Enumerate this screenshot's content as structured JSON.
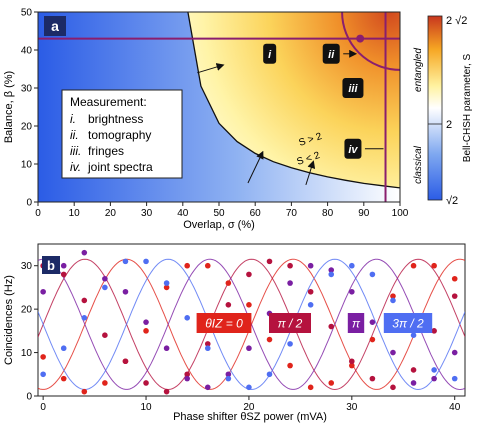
{
  "chart_data": [
    {
      "type": "heatmap",
      "panel_label": "a",
      "xlabel": "Overlap, σ (%)",
      "ylabel": "Balance, β (%)",
      "xlim": [
        0,
        100
      ],
      "ylim": [
        0,
        50
      ],
      "xticks": [
        0,
        10,
        20,
        30,
        40,
        50,
        60,
        70,
        80,
        90,
        100
      ],
      "yticks": [
        0,
        10,
        20,
        30,
        40,
        50
      ],
      "colorbar": {
        "label": "Bell-CHSH parameter, S",
        "min_label": "√2",
        "mid_label": "2",
        "max_label": "2 √2",
        "upper_region": "entangled",
        "lower_region": "classical",
        "colors": [
          "#2b5ce6",
          "#7fa8f0",
          "#ffffff",
          "#fff2a0",
          "#f6a623",
          "#c8361e"
        ]
      },
      "boundary_labels": {
        "above": "S > 2",
        "below": "S < 2"
      },
      "boundary_curve": [
        [
          41.4,
          50
        ],
        [
          45,
          30.5
        ],
        [
          50,
          20.7
        ],
        [
          55,
          15.9
        ],
        [
          60,
          12.8
        ],
        [
          65,
          10.6
        ],
        [
          70,
          9.0
        ],
        [
          75,
          7.7
        ],
        [
          80,
          6.6
        ],
        [
          85,
          5.7
        ],
        [
          90,
          4.9
        ],
        [
          95,
          4.3
        ],
        [
          100,
          3.7
        ]
      ],
      "measurement_lines": {
        "brightness_beta": 43,
        "joint_spectra_sigma": 96,
        "tomography_point": [
          89,
          43
        ],
        "fringes_arc_center": [
          100,
          50
        ]
      },
      "markers": [
        {
          "id": "i",
          "label": "i",
          "x": 64,
          "y": 39
        },
        {
          "id": "ii",
          "label": "ii",
          "x": 81,
          "y": 39
        },
        {
          "id": "iii",
          "label": "iii",
          "x": 87,
          "y": 30
        },
        {
          "id": "iv",
          "label": "iv",
          "x": 87,
          "y": 14
        }
      ],
      "legend": {
        "title": "Measurement:",
        "items": [
          {
            "num": "i.",
            "text": "brightness"
          },
          {
            "num": "ii.",
            "text": "tomography"
          },
          {
            "num": "iii.",
            "text": "fringes"
          },
          {
            "num": "iv.",
            "text": "joint spectra"
          }
        ]
      }
    },
    {
      "type": "scatter",
      "panel_label": "b",
      "xlabel": "Phase shifter θSZ power (mVA)",
      "ylabel": "Coincidences (Hz)",
      "xlim": [
        -0.5,
        41
      ],
      "ylim": [
        0,
        35
      ],
      "xticks": [
        0,
        10,
        20,
        30,
        40
      ],
      "yticks": [
        0,
        10,
        20,
        30
      ],
      "fringe_model": {
        "mean": 16.5,
        "amplitude": 15,
        "period": 16.2
      },
      "series": [
        {
          "name": "θIZ = 0",
          "label": "θIZ = 0",
          "color": "#e0241b",
          "phase": 3.14,
          "points": [
            [
              0,
              9
            ],
            [
              2,
              4
            ],
            [
              4,
              1
            ],
            [
              6,
              3
            ],
            [
              8,
              8
            ],
            [
              10,
              15
            ],
            [
              12,
              25
            ],
            [
              14,
              30
            ],
            [
              16,
              30
            ],
            [
              18,
              26
            ],
            [
              20,
              21
            ],
            [
              22,
              13
            ],
            [
              24,
              7
            ],
            [
              26,
              2
            ],
            [
              28,
              3
            ],
            [
              30,
              7
            ],
            [
              32,
              13
            ],
            [
              34,
              23
            ],
            [
              36,
              30
            ],
            [
              38,
              30
            ],
            [
              40,
              27
            ]
          ]
        },
        {
          "name": "π / 2",
          "label": "π / 2",
          "color": "#b5123e",
          "phase": 4.71,
          "points": [
            [
              0,
              30
            ],
            [
              2,
              28
            ],
            [
              4,
              22
            ],
            [
              6,
              14
            ],
            [
              8,
              8
            ],
            [
              10,
              3
            ],
            [
              12,
              1
            ],
            [
              14,
              5
            ],
            [
              16,
              12
            ],
            [
              18,
              21
            ],
            [
              20,
              28
            ],
            [
              22,
              31
            ],
            [
              24,
              30
            ],
            [
              26,
              24
            ],
            [
              28,
              16
            ],
            [
              30,
              8
            ],
            [
              32,
              4
            ],
            [
              34,
              2
            ],
            [
              36,
              6
            ],
            [
              38,
              15
            ],
            [
              40,
              23
            ]
          ]
        },
        {
          "name": "π",
          "label": "π",
          "color": "#7a1fa2",
          "phase": 0.0,
          "points": [
            [
              0,
              24
            ],
            [
              2,
              30
            ],
            [
              4,
              33
            ],
            [
              6,
              27
            ],
            [
              8,
              24
            ],
            [
              10,
              17
            ],
            [
              12,
              11
            ],
            [
              14,
              4
            ],
            [
              16,
              2
            ],
            [
              18,
              5
            ],
            [
              20,
              11
            ],
            [
              22,
              19
            ],
            [
              24,
              26
            ],
            [
              26,
              30
            ],
            [
              28,
              29
            ],
            [
              30,
              24
            ],
            [
              32,
              17
            ],
            [
              34,
              10
            ],
            [
              36,
              3
            ],
            [
              38,
              4
            ],
            [
              40,
              10
            ]
          ]
        },
        {
          "name": "3π / 2",
          "label": "3π / 2",
          "color": "#4f6ef2",
          "phase": 1.57,
          "points": [
            [
              0,
              5
            ],
            [
              2,
              11
            ],
            [
              4,
              18
            ],
            [
              6,
              25
            ],
            [
              8,
              31
            ],
            [
              10,
              31
            ],
            [
              12,
              26
            ],
            [
              14,
              18
            ],
            [
              16,
              11
            ],
            [
              18,
              4
            ],
            [
              20,
              2
            ],
            [
              22,
              5
            ],
            [
              24,
              12
            ],
            [
              26,
              21
            ],
            [
              28,
              28
            ],
            [
              30,
              30
            ],
            [
              32,
              28
            ],
            [
              34,
              22
            ],
            [
              36,
              14
            ],
            [
              38,
              6
            ],
            [
              40,
              4
            ]
          ]
        }
      ]
    }
  ]
}
